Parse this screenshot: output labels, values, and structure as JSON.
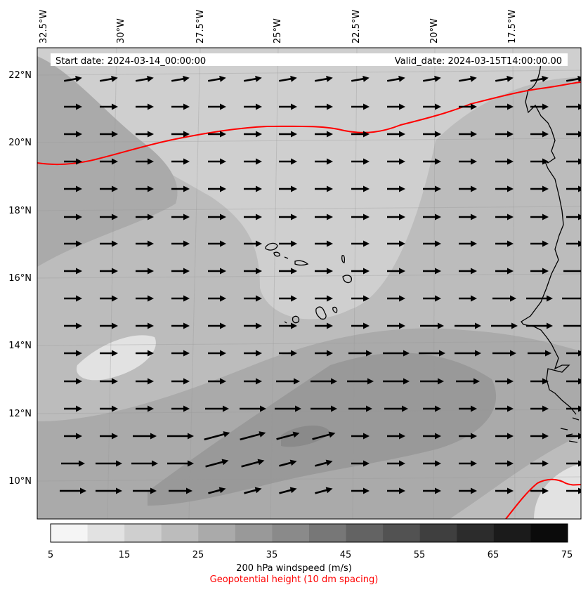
{
  "map": {
    "start_date": "Start date: 2024-03-14_00:00:00",
    "valid_date": "Valid_date: 2024-03-15T14:00:00.00",
    "lon_labels": [
      "32.5°W",
      "30°W",
      "27.5°W",
      "25°W",
      "22.5°W",
      "20°W",
      "17.5°W"
    ],
    "lat_labels": [
      "22°N",
      "20°N",
      "18°N",
      "16°N",
      "14°N",
      "12°N",
      "10°N"
    ],
    "extent": {
      "lon_min": -33.0,
      "lon_max": -15.8,
      "lat_min": 8.9,
      "lat_max": 22.8
    }
  },
  "colorbar": {
    "ticks": [
      "5",
      "15",
      "25",
      "35",
      "45",
      "55",
      "65",
      "75"
    ],
    "levels": [
      5,
      10,
      15,
      20,
      25,
      30,
      35,
      40,
      45,
      50,
      55,
      60,
      65,
      70,
      75
    ],
    "colors": [
      "#f5f5f5",
      "#e2e2e2",
      "#cfcfcf",
      "#bcbcbc",
      "#aaaaaa",
      "#999999",
      "#8a8a8a",
      "#777777",
      "#636363",
      "#525252",
      "#3f3f3f",
      "#2c2c2c",
      "#1b1b1b",
      "#0b0b0b"
    ],
    "label": "200 hPa windspeed (m/s)",
    "sublabel": "Geopotential height (10 dm spacing)",
    "sublabel_color": "#ff0000"
  },
  "contour_color": "#ff0000"
}
